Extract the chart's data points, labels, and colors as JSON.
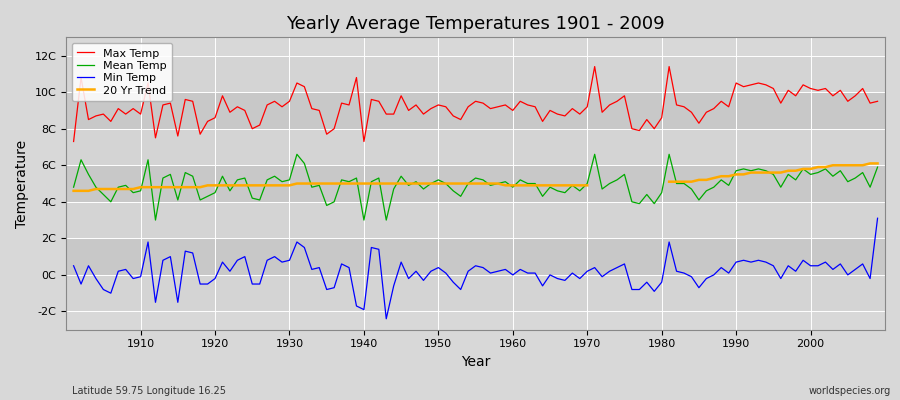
{
  "title": "Yearly Average Temperatures 1901 - 2009",
  "xlabel": "Year",
  "ylabel": "Temperature",
  "subtitle_left": "Latitude 59.75 Longitude 16.25",
  "subtitle_right": "worldspecies.org",
  "background_color": "#d8d8d8",
  "plot_bg_color": "#d8d8d8",
  "band_colors": [
    "#d0d0d0",
    "#c8c8c8"
  ],
  "ylim": [
    -3,
    13
  ],
  "yticks": [
    -2,
    0,
    2,
    4,
    6,
    8,
    10,
    12
  ],
  "ytick_labels": [
    "-2C",
    "0C",
    "2C",
    "4C",
    "6C",
    "8C",
    "10C",
    "12C"
  ],
  "start_year": 1901,
  "end_year": 2009,
  "line_colors": {
    "max": "#ff0000",
    "mean": "#00aa00",
    "min": "#0000ff",
    "trend": "#ffaa00"
  },
  "legend_labels": [
    "Max Temp",
    "Mean Temp",
    "Min Temp",
    "20 Yr Trend"
  ],
  "max_temp": [
    7.3,
    10.8,
    8.5,
    8.7,
    8.8,
    8.4,
    9.1,
    8.8,
    9.1,
    8.8,
    10.5,
    7.5,
    9.3,
    9.4,
    7.6,
    9.6,
    9.5,
    7.7,
    8.4,
    8.6,
    9.8,
    8.9,
    9.2,
    9.0,
    8.0,
    8.2,
    9.3,
    9.5,
    9.2,
    9.5,
    10.5,
    10.3,
    9.1,
    9.0,
    7.7,
    8.0,
    9.4,
    9.3,
    10.8,
    7.3,
    9.6,
    9.5,
    8.8,
    8.8,
    9.8,
    9.0,
    9.3,
    8.8,
    9.1,
    9.3,
    9.2,
    8.7,
    8.5,
    9.2,
    9.5,
    9.4,
    9.1,
    9.2,
    9.3,
    9.0,
    9.5,
    9.3,
    9.2,
    8.4,
    9.0,
    8.8,
    8.7,
    9.1,
    8.8,
    9.2,
    11.4,
    8.9,
    9.3,
    9.5,
    9.8,
    8.0,
    7.9,
    8.5,
    8.0,
    8.6,
    11.4,
    9.3,
    9.2,
    8.9,
    8.3,
    8.9,
    9.1,
    9.5,
    9.2,
    10.5,
    10.3,
    10.4,
    10.5,
    10.4,
    10.2,
    9.4,
    10.1,
    9.8,
    10.4,
    10.2,
    10.1,
    10.2,
    9.8,
    10.1,
    9.5,
    9.8,
    10.2,
    9.4,
    9.5
  ],
  "mean_temp": [
    4.8,
    6.3,
    5.5,
    4.8,
    4.4,
    4.0,
    4.8,
    4.9,
    4.5,
    4.6,
    6.3,
    3.0,
    5.3,
    5.5,
    4.1,
    5.6,
    5.4,
    4.1,
    4.3,
    4.5,
    5.4,
    4.6,
    5.2,
    5.3,
    4.2,
    4.1,
    5.2,
    5.4,
    5.1,
    5.2,
    6.6,
    6.1,
    4.8,
    4.9,
    3.8,
    4.0,
    5.2,
    5.1,
    5.3,
    3.0,
    5.1,
    5.3,
    3.0,
    4.7,
    5.4,
    4.9,
    5.1,
    4.7,
    5.0,
    5.2,
    5.0,
    4.6,
    4.3,
    5.0,
    5.3,
    5.2,
    4.9,
    5.0,
    5.1,
    4.8,
    5.2,
    5.0,
    5.0,
    4.3,
    4.8,
    4.6,
    4.5,
    4.9,
    4.6,
    5.0,
    6.6,
    4.7,
    5.0,
    5.2,
    5.5,
    4.0,
    3.9,
    4.4,
    3.9,
    4.5,
    6.6,
    5.0,
    5.0,
    4.7,
    4.1,
    4.6,
    4.8,
    5.2,
    4.9,
    5.7,
    5.8,
    5.7,
    5.8,
    5.7,
    5.5,
    4.8,
    5.5,
    5.2,
    5.8,
    5.5,
    5.6,
    5.8,
    5.4,
    5.7,
    5.1,
    5.3,
    5.6,
    4.8,
    5.9
  ],
  "min_temp": [
    0.5,
    -0.5,
    0.5,
    -0.2,
    -0.8,
    -1.0,
    0.2,
    0.3,
    -0.2,
    -0.1,
    1.8,
    -1.5,
    0.8,
    1.0,
    -1.5,
    1.3,
    1.2,
    -0.5,
    -0.5,
    -0.2,
    0.7,
    0.2,
    0.8,
    1.0,
    -0.5,
    -0.5,
    0.8,
    1.0,
    0.7,
    0.8,
    1.8,
    1.5,
    0.3,
    0.4,
    -0.8,
    -0.7,
    0.6,
    0.4,
    -1.7,
    -1.9,
    1.5,
    1.4,
    -2.4,
    -0.6,
    0.7,
    -0.2,
    0.2,
    -0.3,
    0.2,
    0.4,
    0.1,
    -0.4,
    -0.8,
    0.2,
    0.5,
    0.4,
    0.1,
    0.2,
    0.3,
    0.0,
    0.3,
    0.1,
    0.1,
    -0.6,
    0.0,
    -0.2,
    -0.3,
    0.1,
    -0.2,
    0.2,
    0.4,
    -0.1,
    0.2,
    0.4,
    0.6,
    -0.8,
    -0.8,
    -0.4,
    -0.9,
    -0.4,
    1.8,
    0.2,
    0.1,
    -0.1,
    -0.7,
    -0.2,
    0.0,
    0.4,
    0.1,
    0.7,
    0.8,
    0.7,
    0.8,
    0.7,
    0.5,
    -0.2,
    0.5,
    0.2,
    0.8,
    0.5,
    0.5,
    0.7,
    0.3,
    0.6,
    0.0,
    0.3,
    0.6,
    -0.2,
    3.1
  ],
  "trend": [
    4.6,
    4.6,
    4.6,
    4.7,
    4.7,
    4.7,
    4.7,
    4.7,
    4.7,
    4.8,
    4.8,
    4.8,
    4.8,
    4.8,
    4.8,
    4.8,
    4.8,
    4.8,
    4.9,
    4.9,
    4.9,
    4.9,
    4.9,
    4.9,
    4.9,
    4.9,
    4.9,
    4.9,
    4.9,
    4.9,
    5.0,
    5.0,
    5.0,
    5.0,
    5.0,
    5.0,
    5.0,
    5.0,
    5.0,
    5.0,
    5.0,
    5.0,
    5.0,
    5.0,
    5.0,
    5.0,
    5.0,
    5.0,
    5.0,
    5.0,
    5.0,
    5.0,
    5.0,
    5.0,
    5.0,
    5.0,
    5.0,
    5.0,
    4.9,
    4.9,
    4.9,
    4.9,
    4.9,
    4.9,
    4.9,
    4.9,
    4.9,
    4.9,
    4.9,
    4.9,
    null,
    null,
    null,
    null,
    null,
    null,
    null,
    null,
    null,
    null,
    5.1,
    5.1,
    5.1,
    5.1,
    5.2,
    5.2,
    5.3,
    5.4,
    5.4,
    5.5,
    5.5,
    5.6,
    5.6,
    5.6,
    5.6,
    5.6,
    5.7,
    5.7,
    5.8,
    5.8,
    5.9,
    5.9,
    6.0,
    6.0,
    6.0,
    6.0,
    6.0,
    6.1,
    6.1
  ]
}
